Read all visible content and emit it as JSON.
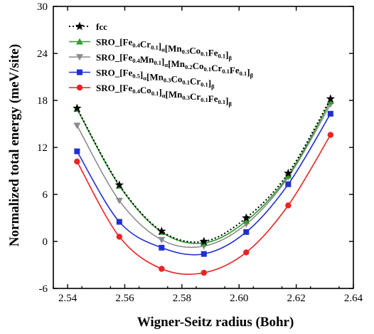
{
  "chart_data": {
    "type": "line",
    "title": "",
    "xlabel": "Wigner-Seitz radius (Bohr)",
    "ylabel": "Normalized total energy (meV/site)",
    "xlim": [
      2.535,
      2.64
    ],
    "ylim": [
      -6,
      30
    ],
    "xticks": [
      "2.54",
      "2.56",
      "2.58",
      "2.60",
      "2.62",
      "2.64"
    ],
    "xtick_values": [
      2.54,
      2.56,
      2.58,
      2.6,
      2.62,
      2.64
    ],
    "yticks": [
      "-6",
      "0",
      "6",
      "12",
      "18",
      "24",
      "30"
    ],
    "ytick_values": [
      -6,
      0,
      6,
      12,
      18,
      24,
      30
    ],
    "grid": false,
    "legend_position": "top-left",
    "x": [
      2.5433,
      2.5581,
      2.5729,
      2.5877,
      2.6025,
      2.6172,
      2.632
    ],
    "series": [
      {
        "name": "fcc",
        "marker": "star",
        "linestyle": "dotted",
        "color": "#000000",
        "values": [
          17.0,
          7.2,
          1.3,
          0.0,
          3.0,
          8.7,
          18.2
        ],
        "legend_parts": [
          [
            "fcc",
            ""
          ]
        ]
      },
      {
        "name": "SRO_[Fe0.4Cr0.1]α[Mn0.3Co0.1Fe0.1]β",
        "marker": "triangle-up",
        "linestyle": "solid",
        "color": "#2ca02c",
        "values": [
          16.9,
          7.1,
          1.2,
          -0.2,
          2.6,
          8.4,
          17.9
        ],
        "legend_parts": [
          [
            "SRO_[Fe",
            ""
          ],
          [
            "0.4",
            "sub"
          ],
          [
            "Cr",
            ""
          ],
          [
            "0.1",
            "sub"
          ],
          [
            "]",
            ""
          ],
          [
            "α",
            "sub"
          ],
          [
            "[Mn",
            ""
          ],
          [
            "0.3",
            "sub"
          ],
          [
            "Co",
            ""
          ],
          [
            "0.1",
            "sub"
          ],
          [
            "Fe",
            ""
          ],
          [
            "0.1",
            "sub"
          ],
          [
            "]",
            ""
          ],
          [
            "β",
            "sub"
          ]
        ]
      },
      {
        "name": "SRO_[Fe0.4Mn0.1]α[Mn0.2Co0.1Cr0.1Fe0.1]β",
        "marker": "triangle-down",
        "linestyle": "solid",
        "color": "#8c8c8c",
        "values": [
          14.8,
          5.2,
          0.2,
          -0.6,
          2.2,
          8.2,
          17.5
        ],
        "legend_parts": [
          [
            "SRO_[Fe",
            ""
          ],
          [
            "0.4",
            "sub"
          ],
          [
            "Mn",
            ""
          ],
          [
            "0.1",
            "sub"
          ],
          [
            "]",
            ""
          ],
          [
            "α",
            "sub"
          ],
          [
            "[Mn",
            ""
          ],
          [
            "0.2",
            "sub"
          ],
          [
            "Co",
            ""
          ],
          [
            "0.1",
            "sub"
          ],
          [
            "Cr",
            ""
          ],
          [
            "0.1",
            "sub"
          ],
          [
            "Fe",
            ""
          ],
          [
            "0.1",
            "sub"
          ],
          [
            "]",
            ""
          ],
          [
            "β",
            "sub"
          ]
        ]
      },
      {
        "name": "SRO_[Fe0.5]α[Mn0.3Co0.1Cr0.1]β",
        "marker": "square",
        "linestyle": "solid",
        "color": "#1f2fd0",
        "values": [
          11.5,
          2.5,
          -0.8,
          -1.6,
          1.2,
          7.3,
          16.3
        ],
        "legend_parts": [
          [
            "SRO_[Fe",
            ""
          ],
          [
            "0.5",
            "sub"
          ],
          [
            "]",
            ""
          ],
          [
            "α",
            "sub"
          ],
          [
            "[Mn",
            ""
          ],
          [
            "0.3",
            "sub"
          ],
          [
            "Co",
            ""
          ],
          [
            "0.1",
            "sub"
          ],
          [
            "Cr",
            ""
          ],
          [
            "0.1",
            "sub"
          ],
          [
            "]",
            ""
          ],
          [
            "β",
            "sub"
          ]
        ]
      },
      {
        "name": "SRO_[Fe0.4Co0.1]α[Mn0.3Cr0.1Fe0.1]β",
        "marker": "circle",
        "linestyle": "solid",
        "color": "#ee2222",
        "values": [
          10.2,
          0.6,
          -3.5,
          -4.0,
          -1.4,
          4.6,
          13.6
        ],
        "legend_parts": [
          [
            "SRO_[Fe",
            ""
          ],
          [
            "0.4",
            "sub"
          ],
          [
            "Co",
            ""
          ],
          [
            "0.1",
            "sub"
          ],
          [
            "]",
            ""
          ],
          [
            "α",
            "sub"
          ],
          [
            "[Mn",
            ""
          ],
          [
            "0.3",
            "sub"
          ],
          [
            "Cr",
            ""
          ],
          [
            "0.1",
            "sub"
          ],
          [
            "Fe",
            ""
          ],
          [
            "0.1",
            "sub"
          ],
          [
            "]",
            ""
          ],
          [
            "β",
            "sub"
          ]
        ]
      }
    ]
  }
}
